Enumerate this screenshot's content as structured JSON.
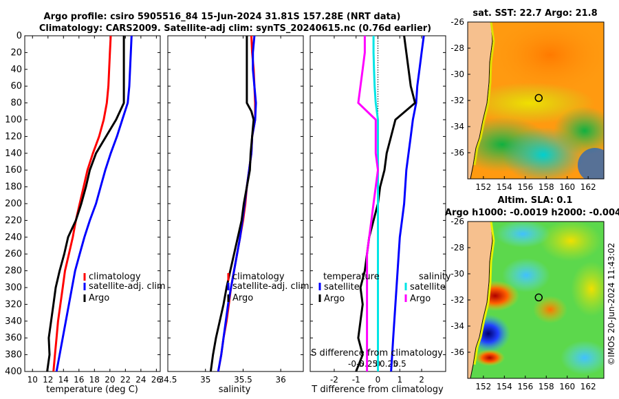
{
  "header": {
    "title_line1": "Argo profile: csiro 5905516_84 15-Jun-2024 31.81S 157.28E (NRT data)",
    "title_line2": "Climatology: CARS2009. Satellite-adj clim: synTS_20240615.nc (0.76d earlier)"
  },
  "credit": "©IMOS 20-Jun-2024 11:43:02",
  "colors": {
    "climatology": "#ff0000",
    "satellite": "#0000ff",
    "argo": "#000000",
    "sat_salinity": "#00e5e5",
    "argo_salinity": "#ff00ff"
  },
  "chart_data": [
    {
      "type": "line",
      "id": "temperature",
      "xlabel": "temperature (deg C)",
      "ylabel": "",
      "xlim": [
        9,
        26.5
      ],
      "ylim": [
        0,
        400
      ],
      "xticks": [
        10,
        12,
        14,
        16,
        18,
        20,
        22,
        24,
        26
      ],
      "yticks": [
        0,
        20,
        40,
        60,
        80,
        100,
        120,
        140,
        160,
        180,
        200,
        220,
        240,
        260,
        280,
        300,
        320,
        340,
        360,
        380,
        400
      ],
      "legend": [
        "climatology",
        "satellite-adj. clim",
        "Argo"
      ],
      "series": [
        {
          "name": "climatology",
          "color": "#ff0000",
          "points": [
            [
              20.1,
              0
            ],
            [
              20.0,
              20
            ],
            [
              19.9,
              40
            ],
            [
              19.8,
              60
            ],
            [
              19.6,
              80
            ],
            [
              19.2,
              100
            ],
            [
              18.6,
              120
            ],
            [
              17.8,
              140
            ],
            [
              17.1,
              160
            ],
            [
              16.6,
              180
            ],
            [
              16.1,
              200
            ],
            [
              15.6,
              220
            ],
            [
              15.2,
              240
            ],
            [
              14.7,
              260
            ],
            [
              14.2,
              280
            ],
            [
              13.9,
              300
            ],
            [
              13.6,
              320
            ],
            [
              13.3,
              340
            ],
            [
              13.1,
              360
            ],
            [
              12.9,
              380
            ],
            [
              12.7,
              400
            ]
          ]
        },
        {
          "name": "satellite-adj. clim",
          "color": "#0000ff",
          "points": [
            [
              22.8,
              0
            ],
            [
              22.7,
              20
            ],
            [
              22.6,
              40
            ],
            [
              22.5,
              60
            ],
            [
              22.3,
              80
            ],
            [
              21.6,
              100
            ],
            [
              20.9,
              120
            ],
            [
              20.1,
              140
            ],
            [
              19.4,
              160
            ],
            [
              18.8,
              180
            ],
            [
              18.2,
              200
            ],
            [
              17.4,
              220
            ],
            [
              16.7,
              240
            ],
            [
              16.1,
              260
            ],
            [
              15.5,
              280
            ],
            [
              15.1,
              300
            ],
            [
              14.7,
              320
            ],
            [
              14.3,
              340
            ],
            [
              13.9,
              360
            ],
            [
              13.5,
              380
            ],
            [
              13.1,
              400
            ]
          ]
        },
        {
          "name": "Argo",
          "color": "#000000",
          "points": [
            [
              21.8,
              0
            ],
            [
              21.8,
              20
            ],
            [
              21.8,
              40
            ],
            [
              21.8,
              60
            ],
            [
              21.8,
              80
            ],
            [
              20.8,
              100
            ],
            [
              19.5,
              120
            ],
            [
              18.2,
              140
            ],
            [
              17.4,
              160
            ],
            [
              16.9,
              180
            ],
            [
              16.3,
              200
            ],
            [
              15.6,
              220
            ],
            [
              14.6,
              240
            ],
            [
              14.1,
              260
            ],
            [
              13.5,
              280
            ],
            [
              13.0,
              300
            ],
            [
              12.7,
              320
            ],
            [
              12.4,
              340
            ],
            [
              12.1,
              360
            ],
            [
              12.2,
              380
            ],
            [
              11.9,
              400
            ]
          ]
        }
      ]
    },
    {
      "type": "line",
      "id": "salinity",
      "xlabel": "salinity",
      "ylabel": "",
      "xlim": [
        34.5,
        36.3
      ],
      "ylim": [
        0,
        400
      ],
      "xticks": [
        34.5,
        35,
        35.5,
        36
      ],
      "yticks": [
        0,
        20,
        40,
        60,
        80,
        100,
        120,
        140,
        160,
        180,
        200,
        220,
        240,
        260,
        280,
        300,
        320,
        340,
        360,
        380,
        400
      ],
      "legend": [
        "climatology",
        "satellite-adj. clim",
        "Argo"
      ],
      "series": [
        {
          "name": "climatology",
          "color": "#ff0000",
          "points": [
            [
              35.61,
              0
            ],
            [
              35.62,
              20
            ],
            [
              35.64,
              40
            ],
            [
              35.65,
              60
            ],
            [
              35.66,
              80
            ],
            [
              35.66,
              100
            ],
            [
              35.62,
              120
            ],
            [
              35.61,
              140
            ],
            [
              35.58,
              160
            ],
            [
              35.55,
              180
            ],
            [
              35.53,
              200
            ],
            [
              35.5,
              220
            ],
            [
              35.46,
              240
            ],
            [
              35.42,
              260
            ],
            [
              35.38,
              280
            ],
            [
              35.34,
              300
            ],
            [
              35.31,
              320
            ],
            [
              35.28,
              340
            ],
            [
              35.24,
              360
            ],
            [
              35.21,
              380
            ],
            [
              35.17,
              400
            ]
          ]
        },
        {
          "name": "satellite-adj. clim",
          "color": "#0000ff",
          "points": [
            [
              35.65,
              0
            ],
            [
              35.63,
              20
            ],
            [
              35.63,
              40
            ],
            [
              35.65,
              60
            ],
            [
              35.67,
              80
            ],
            [
              35.66,
              100
            ],
            [
              35.62,
              120
            ],
            [
              35.61,
              140
            ],
            [
              35.58,
              160
            ],
            [
              35.55,
              180
            ],
            [
              35.52,
              200
            ],
            [
              35.49,
              220
            ],
            [
              35.46,
              240
            ],
            [
              35.42,
              260
            ],
            [
              35.38,
              280
            ],
            [
              35.34,
              300
            ],
            [
              35.3,
              320
            ],
            [
              35.27,
              340
            ],
            [
              35.24,
              360
            ],
            [
              35.21,
              380
            ],
            [
              35.17,
              400
            ]
          ]
        },
        {
          "name": "Argo",
          "color": "#000000",
          "points": [
            [
              35.55,
              0
            ],
            [
              35.55,
              20
            ],
            [
              35.55,
              40
            ],
            [
              35.55,
              60
            ],
            [
              35.55,
              80
            ],
            [
              35.61,
              90
            ],
            [
              35.64,
              100
            ],
            [
              35.62,
              120
            ],
            [
              35.6,
              140
            ],
            [
              35.59,
              160
            ],
            [
              35.55,
              180
            ],
            [
              35.51,
              200
            ],
            [
              35.48,
              220
            ],
            [
              35.43,
              240
            ],
            [
              35.38,
              260
            ],
            [
              35.33,
              280
            ],
            [
              35.28,
              300
            ],
            [
              35.24,
              320
            ],
            [
              35.19,
              340
            ],
            [
              35.14,
              360
            ],
            [
              35.1,
              380
            ],
            [
              35.07,
              400
            ]
          ]
        }
      ]
    },
    {
      "type": "line",
      "id": "difference",
      "xlabel": "T difference from climatology",
      "xlabel_top": "S difference from climatology",
      "xlim": [
        -3.1,
        3.1
      ],
      "ylim": [
        0,
        400
      ],
      "xticks": [
        -2,
        -1,
        0,
        1,
        2
      ],
      "xticklabels": [
        "-2",
        "-1",
        "0",
        "1",
        "2"
      ],
      "s_xticks": [
        -1,
        -0.5,
        0,
        0.5,
        1
      ],
      "s_xticklabels": [
        "-0.5",
        "-0.25",
        "0",
        "0.25",
        "0.5"
      ],
      "yticks": [
        0,
        20,
        40,
        60,
        80,
        100,
        120,
        140,
        160,
        180,
        200,
        220,
        240,
        260,
        280,
        300,
        320,
        340,
        360,
        380,
        400
      ],
      "legend_left_title": "temperature",
      "legend_left": [
        "satellite",
        "Argo"
      ],
      "legend_right_title": "salinity",
      "legend_right": [
        "satellite",
        "Argo"
      ],
      "series": [
        {
          "name": "T satellite",
          "color": "#0000ff",
          "points": [
            [
              2.1,
              0
            ],
            [
              2.0,
              20
            ],
            [
              1.9,
              40
            ],
            [
              1.8,
              60
            ],
            [
              1.75,
              80
            ],
            [
              1.6,
              100
            ],
            [
              1.5,
              120
            ],
            [
              1.4,
              140
            ],
            [
              1.3,
              160
            ],
            [
              1.25,
              180
            ],
            [
              1.2,
              200
            ],
            [
              1.1,
              220
            ],
            [
              1.0,
              240
            ],
            [
              0.95,
              260
            ],
            [
              0.9,
              280
            ],
            [
              0.85,
              300
            ],
            [
              0.8,
              320
            ],
            [
              0.75,
              340
            ],
            [
              0.7,
              360
            ],
            [
              0.65,
              380
            ],
            [
              0.6,
              400
            ]
          ]
        },
        {
          "name": "T Argo",
          "color": "#000000",
          "points": [
            [
              1.2,
              0
            ],
            [
              1.3,
              20
            ],
            [
              1.4,
              40
            ],
            [
              1.5,
              60
            ],
            [
              1.7,
              80
            ],
            [
              0.8,
              100
            ],
            [
              0.6,
              120
            ],
            [
              0.4,
              140
            ],
            [
              0.3,
              160
            ],
            [
              0.1,
              180
            ],
            [
              0.0,
              200
            ],
            [
              -0.2,
              220
            ],
            [
              -0.4,
              240
            ],
            [
              -0.5,
              260
            ],
            [
              -0.6,
              280
            ],
            [
              -0.8,
              300
            ],
            [
              -0.7,
              320
            ],
            [
              -0.8,
              340
            ],
            [
              -0.9,
              360
            ],
            [
              -0.7,
              380
            ],
            [
              -1.0,
              400
            ]
          ]
        },
        {
          "name": "S satellite",
          "color": "#00e5e5",
          "points": [
            [
              -0.2,
              0
            ],
            [
              -0.2,
              20
            ],
            [
              -0.18,
              40
            ],
            [
              -0.15,
              60
            ],
            [
              -0.1,
              80
            ],
            [
              0.0,
              100
            ],
            [
              0.0,
              140
            ],
            [
              0.0,
              200
            ],
            [
              0.0,
              260
            ],
            [
              0.0,
              320
            ],
            [
              0.0,
              400
            ]
          ]
        },
        {
          "name": "S Argo",
          "color": "#ff00ff",
          "points": [
            [
              -0.6,
              0
            ],
            [
              -0.6,
              20
            ],
            [
              -0.7,
              40
            ],
            [
              -0.8,
              60
            ],
            [
              -0.9,
              80
            ],
            [
              -0.1,
              100
            ],
            [
              -0.1,
              140
            ],
            [
              0.0,
              160
            ],
            [
              -0.1,
              180
            ],
            [
              -0.2,
              200
            ],
            [
              -0.3,
              220
            ],
            [
              -0.4,
              240
            ],
            [
              -0.5,
              260
            ],
            [
              -0.5,
              280
            ],
            [
              -0.5,
              300
            ],
            [
              -0.5,
              320
            ],
            [
              -0.5,
              340
            ],
            [
              -0.5,
              360
            ],
            [
              -0.5,
              380
            ],
            [
              -0.5,
              400
            ]
          ]
        }
      ]
    },
    {
      "type": "heatmap",
      "id": "sst_map",
      "title": "sat. SST: 22.7 Argo: 21.8",
      "xlim": [
        150.5,
        163.5
      ],
      "ylim": [
        -38,
        -26
      ],
      "xticks": [
        152,
        154,
        156,
        158,
        160,
        162
      ],
      "yticks": [
        -26,
        -28,
        -30,
        -32,
        -34,
        -36
      ],
      "marker": {
        "lon": 157.28,
        "lat": -31.81
      }
    },
    {
      "type": "heatmap",
      "id": "sla_map",
      "title": "Altim. SLA: 0.1",
      "subtitle": "Argo h1000: -0.0019 h2000: -0.004",
      "xlim": [
        150.5,
        163.5
      ],
      "ylim": [
        -38,
        -26
      ],
      "xticks": [
        152,
        154,
        156,
        158,
        160,
        162
      ],
      "yticks": [
        -26,
        -28,
        -30,
        -32,
        -34,
        -36
      ],
      "marker": {
        "lon": 157.28,
        "lat": -31.81
      }
    }
  ]
}
